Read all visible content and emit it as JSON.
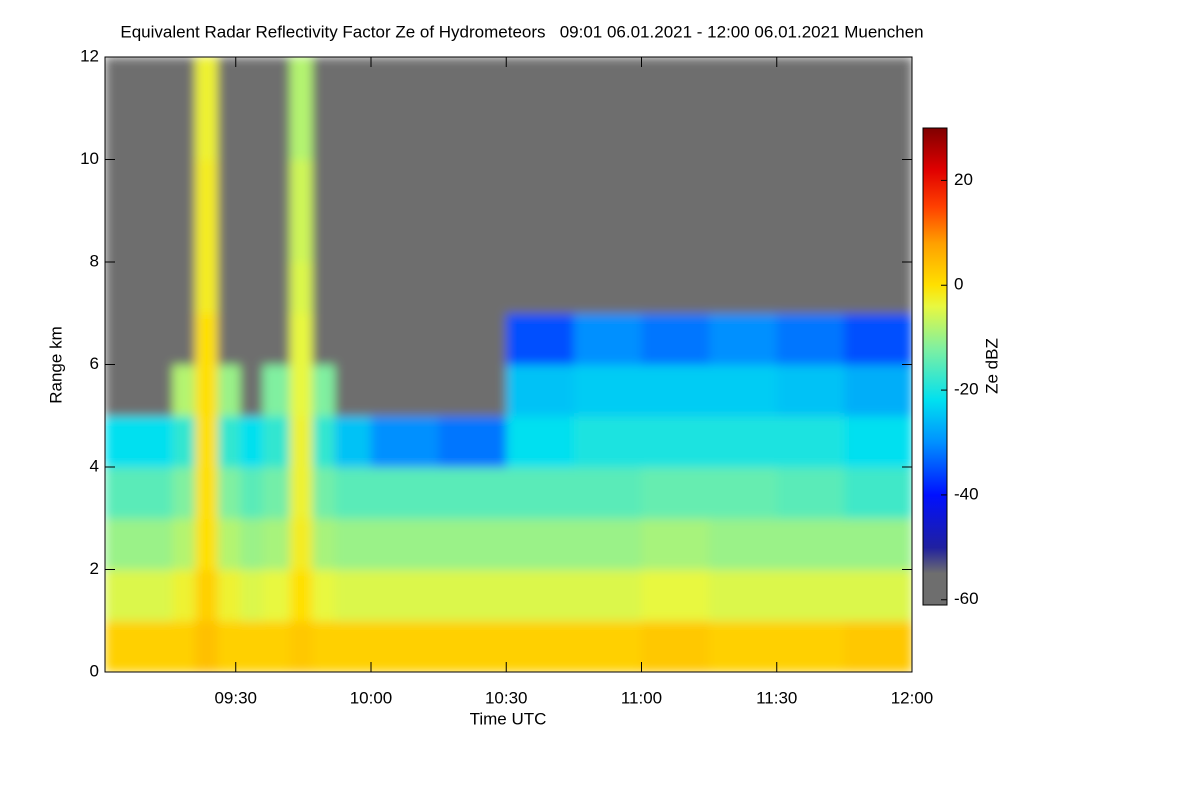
{
  "chart_data": {
    "type": "heatmap",
    "title": "Equivalent Radar Reflectivity Factor Ze of Hydrometeors   09:01 06.01.2021 - 12:00 06.01.2021 Muenchen",
    "xlabel": "Time UTC",
    "ylabel": "Range km",
    "colorbar_label": "Ze dBZ",
    "xlim": [
      541,
      720
    ],
    "xticks": [
      {
        "value": 570,
        "label": "09:30"
      },
      {
        "value": 600,
        "label": "10:00"
      },
      {
        "value": 630,
        "label": "10:30"
      },
      {
        "value": 660,
        "label": "11:00"
      },
      {
        "value": 690,
        "label": "11:30"
      },
      {
        "value": 720,
        "label": "12:00"
      }
    ],
    "ylim": [
      0,
      12
    ],
    "yticks": [
      0,
      2,
      4,
      6,
      8,
      10,
      12
    ],
    "zlim": [
      -61,
      30
    ],
    "zticks": [
      -60,
      -40,
      -20,
      0,
      20
    ],
    "colorscale": [
      {
        "value": -61,
        "color": "#6e6e6e"
      },
      {
        "value": -55,
        "color": "#6e6e6e"
      },
      {
        "value": -50,
        "color": "#2020a0"
      },
      {
        "value": -40,
        "color": "#0010ff"
      },
      {
        "value": -30,
        "color": "#0090ff"
      },
      {
        "value": -22,
        "color": "#00e0f0"
      },
      {
        "value": -12,
        "color": "#80f0a0"
      },
      {
        "value": -4,
        "color": "#e8f840"
      },
      {
        "value": 0,
        "color": "#ffe000"
      },
      {
        "value": 8,
        "color": "#ffa000"
      },
      {
        "value": 15,
        "color": "#ff4000"
      },
      {
        "value": 22,
        "color": "#e00000"
      },
      {
        "value": 30,
        "color": "#800000"
      }
    ],
    "x_edges": [
      541,
      556,
      561,
      566,
      571,
      576,
      582,
      587,
      592,
      600,
      615,
      630,
      645,
      660,
      675,
      690,
      705,
      720
    ],
    "y_edges": [
      0,
      1,
      2,
      3,
      4,
      5,
      6,
      7,
      8,
      10,
      12
    ],
    "z": [
      [
        2,
        -5,
        -10,
        -15,
        -22,
        -60,
        -60,
        -60,
        -60,
        -60
      ],
      [
        2,
        -3,
        -8,
        -12,
        -18,
        -8,
        -60,
        -60,
        -60,
        -60
      ],
      [
        4,
        2,
        0,
        0,
        0,
        0,
        0,
        -2,
        -2,
        -3
      ],
      [
        2,
        -3,
        -8,
        -12,
        -18,
        -10,
        -60,
        -60,
        -60,
        -60
      ],
      [
        2,
        -5,
        -10,
        -15,
        -22,
        -60,
        -60,
        -60,
        -60,
        -60
      ],
      [
        2,
        -4,
        -9,
        -13,
        -18,
        -12,
        -60,
        -60,
        -60,
        -60
      ],
      [
        3,
        0,
        -2,
        -3,
        -3,
        -4,
        -4,
        -5,
        -6,
        -8
      ],
      [
        2,
        -4,
        -9,
        -13,
        -18,
        -12,
        -60,
        -60,
        -60,
        -60
      ],
      [
        2,
        -5,
        -10,
        -15,
        -25,
        -60,
        -60,
        -60,
        -60,
        -60
      ],
      [
        2,
        -5,
        -10,
        -15,
        -30,
        -60,
        -60,
        -60,
        -60,
        -60
      ],
      [
        2,
        -5,
        -10,
        -15,
        -32,
        -60,
        -60,
        -60,
        -60,
        -60
      ],
      [
        2,
        -5,
        -10,
        -15,
        -22,
        -25,
        -35,
        -60,
        -60,
        -60
      ],
      [
        2,
        -5,
        -10,
        -15,
        -20,
        -24,
        -30,
        -60,
        -60,
        -60
      ],
      [
        3,
        -4,
        -9,
        -14,
        -20,
        -24,
        -32,
        -60,
        -60,
        -60
      ],
      [
        2,
        -5,
        -10,
        -14,
        -20,
        -24,
        -30,
        -60,
        -60,
        -60
      ],
      [
        2,
        -5,
        -10,
        -15,
        -20,
        -25,
        -32,
        -60,
        -60,
        -60
      ],
      [
        3,
        -5,
        -10,
        -17,
        -22,
        -27,
        -35,
        -60,
        -60,
        -60
      ]
    ]
  }
}
